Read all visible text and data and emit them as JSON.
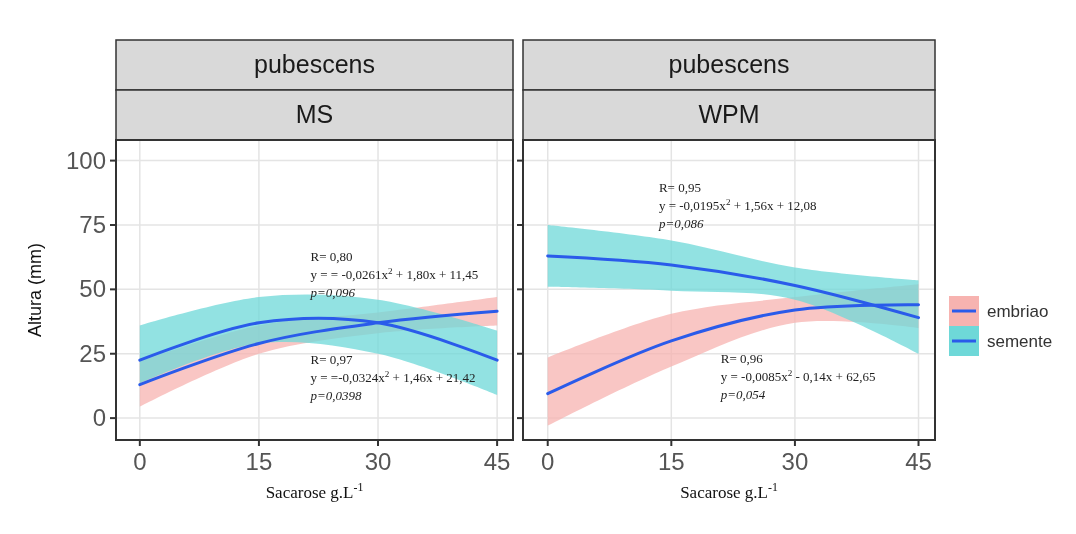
{
  "chart_data": [
    {
      "type": "line",
      "title": "pubescens",
      "subtitle": "MS",
      "xlabel": "Sacarose g.L$^{-1}$",
      "ylabel": "Altura (mm)",
      "xlim": [
        -3,
        47
      ],
      "xticks": [
        0,
        15,
        30,
        45
      ],
      "ylim": [
        -8.5,
        108
      ],
      "yticks": [
        0,
        25,
        50,
        75,
        100
      ],
      "grid": true,
      "series": [
        {
          "color": "#2a5bea",
          "x": [
            0,
            15,
            30,
            45
          ],
          "values": [
            13,
            29,
            37,
            41.5
          ],
          "lower": [
            4.5,
            25,
            33,
            36
          ],
          "upper": [
            22,
            36,
            41,
            47
          ]
        },
        {
          "color": "#2a5bea",
          "x": [
            0,
            15,
            30,
            45
          ],
          "values": [
            22.5,
            37,
            37,
            22.5
          ],
          "lower": [
            13.5,
            29,
            25,
            9
          ],
          "upper": [
            36,
            47,
            46,
            34
          ]
        }
      ],
      "annotations": [
        "R= 0,80",
        "y = = -0,0261x$^{2}$ + 1,80x + 11,45",
        "p=0,096",
        "R= 0,97",
        "y = =-0,0324x$^{2}$ + 1,46x + 21,42",
        "p=0,0398"
      ]
    },
    {
      "type": "line",
      "title": "pubescens",
      "subtitle": "WPM",
      "xlabel": "Sacarose g.L$^{-1}$",
      "xlim": [
        -3,
        47
      ],
      "xticks": [
        0,
        15,
        30,
        45
      ],
      "ylim": [
        -8.5,
        108
      ],
      "yticks": [
        0,
        25,
        50,
        75,
        100
      ],
      "grid": true,
      "tick_labels": "x",
      "legend": "right",
      "series": [
        {
          "name": "embriao",
          "color": "#2a5bea",
          "x": [
            0,
            15,
            30,
            45
          ],
          "values": [
            9.5,
            30,
            42,
            44
          ],
          "lower": [
            -3,
            20,
            37,
            35
          ],
          "upper": [
            23.5,
            40.5,
            47,
            52
          ]
        },
        {
          "name": "semente",
          "color": "#2a5bea",
          "x": [
            0,
            15,
            30,
            45
          ],
          "values": [
            63,
            59.5,
            51.5,
            39
          ],
          "lower": [
            51,
            49.5,
            46,
            25
          ],
          "upper": [
            75,
            69,
            58.5,
            53.5
          ]
        }
      ],
      "annotations": [
        "R= 0,95",
        "y = -0,0195x$^{2}$ + 1,56x + 12,08",
        "p=0,086",
        "R= 0,96",
        "y = -0,0085x$^{2}$ - 0,14x + 62,65",
        "p=0,054"
      ]
    }
  ]
}
